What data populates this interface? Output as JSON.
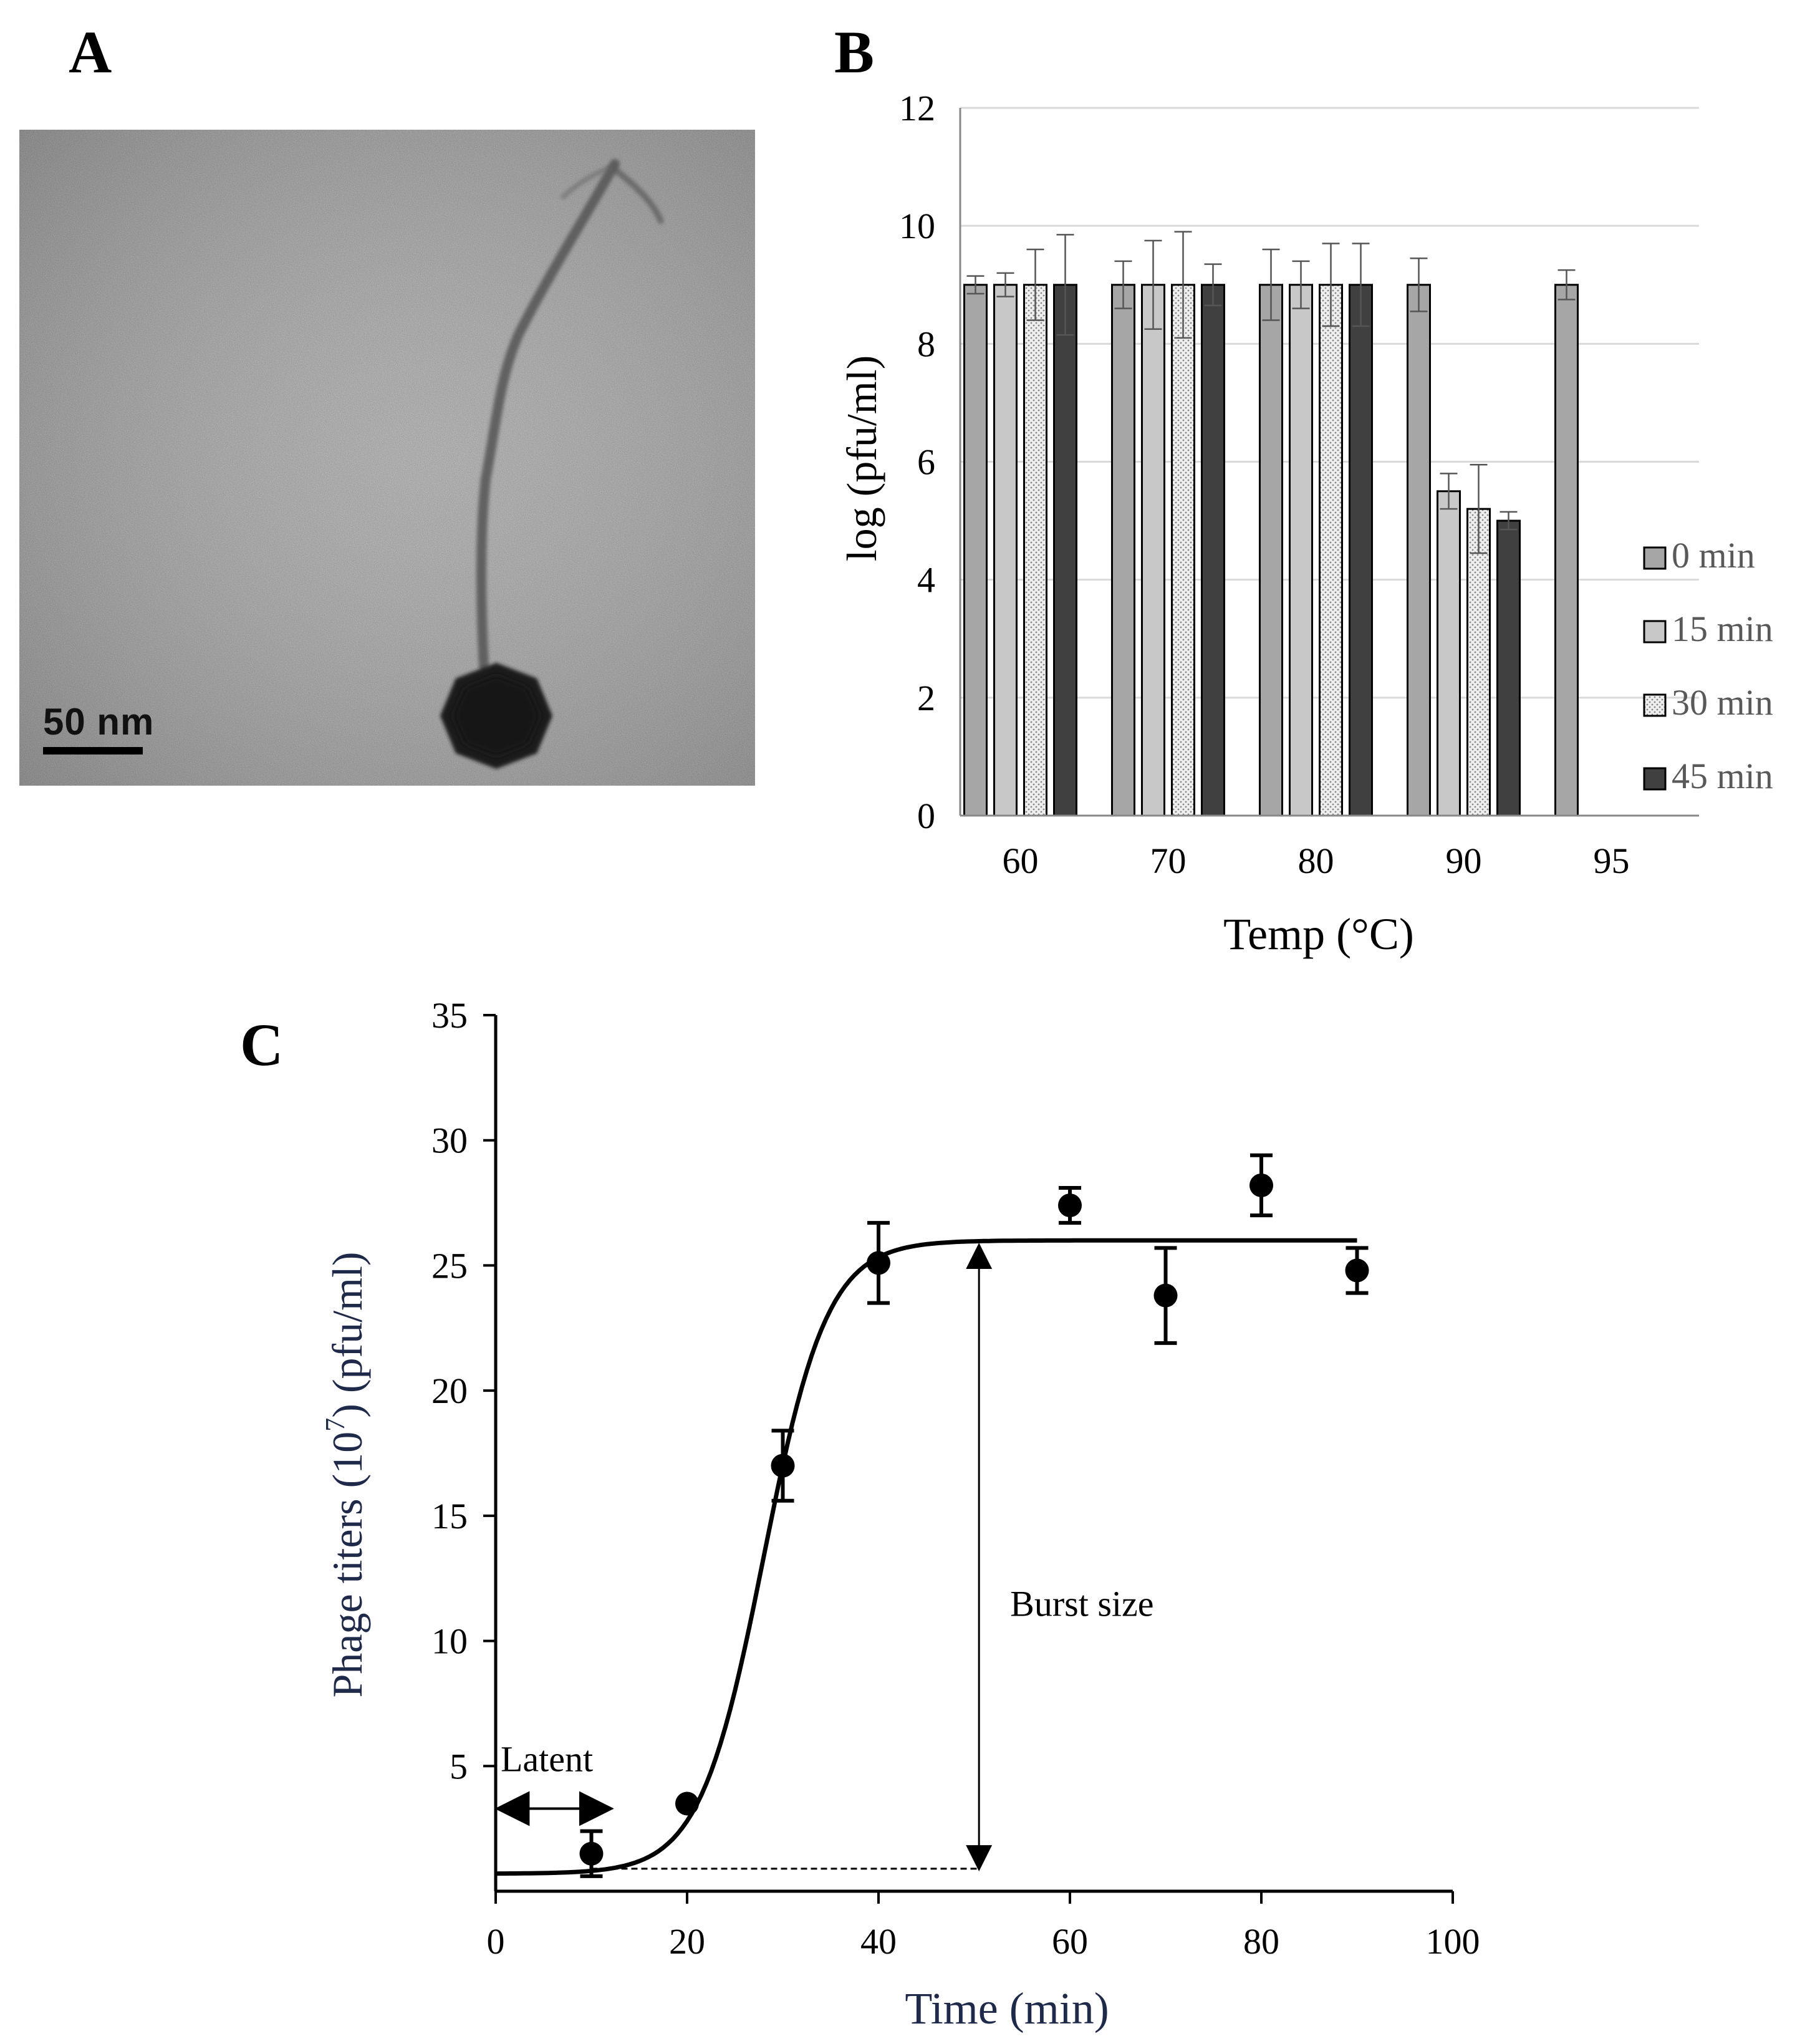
{
  "panels": {
    "a": {
      "letter": "A",
      "scale_bar_label": "50 nm"
    },
    "b": {
      "letter": "B"
    },
    "c": {
      "letter": "C"
    }
  },
  "chart_data": [
    {
      "id": "panel-b",
      "type": "bar",
      "xlabel": "Temp (°C)",
      "ylabel": "log (pfu/ml)",
      "categories": [
        "60",
        "70",
        "80",
        "90",
        "95"
      ],
      "ylim": [
        0,
        12
      ],
      "yticks": [
        0,
        2,
        4,
        6,
        8,
        10,
        12
      ],
      "grid": true,
      "legend_position": "right",
      "series": [
        {
          "name": "0 min",
          "color": "#a6a6a6",
          "pattern": "solid",
          "values": [
            9.0,
            9.0,
            9.0,
            9.0,
            9.0
          ],
          "errors": [
            0.15,
            0.4,
            0.6,
            0.45,
            0.25
          ]
        },
        {
          "name": "15 min",
          "color": "#c8c8c8",
          "pattern": "solid",
          "values": [
            9.0,
            9.0,
            9.0,
            5.5,
            null
          ],
          "errors": [
            0.2,
            0.75,
            0.4,
            0.3,
            null
          ]
        },
        {
          "name": "30 min",
          "color": "#e4e4e4",
          "pattern": "dotted",
          "values": [
            9.0,
            9.0,
            9.0,
            5.2,
            null
          ],
          "errors": [
            0.6,
            0.9,
            0.7,
            0.75,
            null
          ]
        },
        {
          "name": "45 min",
          "color": "#404040",
          "pattern": "solid",
          "values": [
            9.0,
            9.0,
            9.0,
            5.0,
            null
          ],
          "errors": [
            0.85,
            0.35,
            0.7,
            0.15,
            null
          ]
        }
      ]
    },
    {
      "id": "panel-c",
      "type": "scatter",
      "xlabel": "Time (min)",
      "ylabel_prefix": "Phage titers (10",
      "ylabel_exponent": "7",
      "ylabel_suffix": ") (pfu/ml)",
      "xlim": [
        0,
        100
      ],
      "ylim": [
        0,
        35
      ],
      "xticks": [
        0,
        20,
        40,
        60,
        80,
        100
      ],
      "yticks": [
        5,
        10,
        15,
        20,
        25,
        30,
        35
      ],
      "points": [
        {
          "x": 10,
          "y": 1.5,
          "err": 0.9
        },
        {
          "x": 20,
          "y": 3.5,
          "err": 0.0
        },
        {
          "x": 30,
          "y": 17.0,
          "err": 1.4
        },
        {
          "x": 40,
          "y": 25.1,
          "err": 1.6
        },
        {
          "x": 60,
          "y": 27.4,
          "err": 0.7
        },
        {
          "x": 70,
          "y": 23.8,
          "err": 1.9
        },
        {
          "x": 80,
          "y": 28.2,
          "err": 1.2
        },
        {
          "x": 90,
          "y": 24.8,
          "err": 0.9
        }
      ],
      "fit": {
        "model": "logistic",
        "base": 0.7,
        "plateau": 26.0,
        "midpoint": 28.0,
        "rate": 0.3,
        "x_end": 90
      },
      "annotations": {
        "latent_label": "Latent",
        "latent_range": [
          0,
          12
        ],
        "latent_y": 3.3,
        "burst_label": "Burst size",
        "burst_x": 50.5,
        "burst_range": [
          0.9,
          25.8
        ],
        "baseline_y": 0.9,
        "baseline_range": [
          10,
          50.5
        ]
      }
    }
  ]
}
